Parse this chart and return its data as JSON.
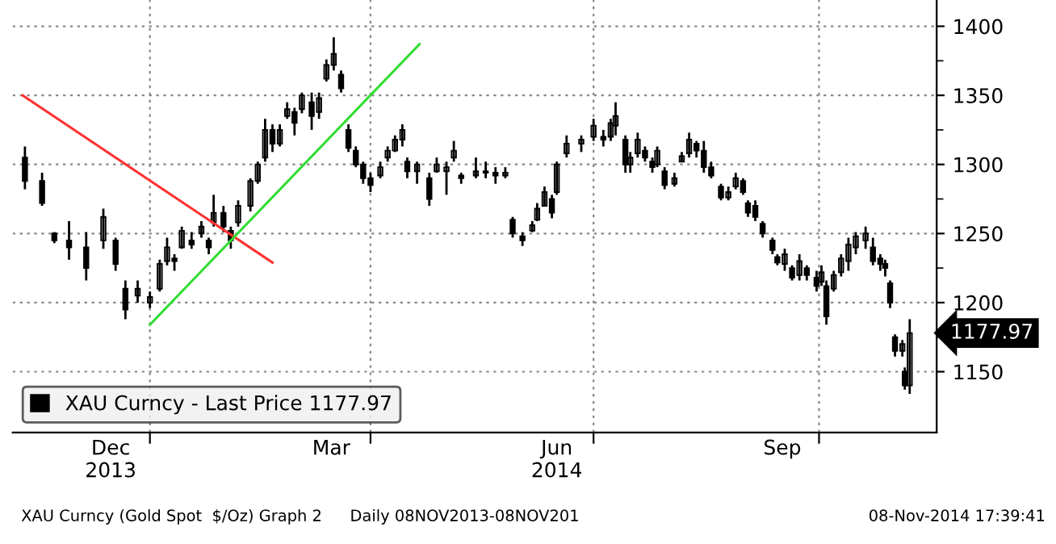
{
  "chart_data": {
    "type": "candlestick",
    "series": [
      {
        "name": "XAU Curncy - Last Price 1177.97",
        "color": "#000000",
        "x": [
          "2013-11-11",
          "2013-11-18",
          "2013-11-23",
          "2013-11-29",
          "2013-12-06",
          "2013-12-13",
          "2013-12-18",
          "2013-12-22",
          "2013-12-27",
          "2014-01-01",
          "2014-01-05",
          "2014-01-08",
          "2014-01-11",
          "2014-01-14",
          "2014-01-18",
          "2014-01-22",
          "2014-01-25",
          "2014-01-27",
          "2014-01-31",
          "2014-02-03",
          "2014-02-06",
          "2014-02-11",
          "2014-02-14",
          "2014-02-17",
          "2014-02-20",
          "2014-02-23",
          "2014-02-26",
          "2014-03-01",
          "2014-03-04",
          "2014-03-08",
          "2014-03-11",
          "2014-03-14",
          "2014-03-17",
          "2014-03-20",
          "2014-03-23",
          "2014-03-26",
          "2014-03-29",
          "2014-04-01",
          "2014-04-05",
          "2014-04-08",
          "2014-04-11",
          "2014-04-14",
          "2014-04-16",
          "2014-04-20",
          "2014-04-25",
          "2014-04-28",
          "2014-05-02",
          "2014-05-05",
          "2014-05-08",
          "2014-05-14",
          "2014-05-18",
          "2014-05-22",
          "2014-05-26",
          "2014-05-29",
          "2014-06-02",
          "2014-06-06",
          "2014-06-08",
          "2014-06-11",
          "2014-06-14",
          "2014-06-16",
          "2014-06-20",
          "2014-06-26",
          "2014-07-01",
          "2014-07-05",
          "2014-07-08",
          "2014-07-10",
          "2014-07-14",
          "2014-07-16",
          "2014-07-19",
          "2014-07-22",
          "2014-07-25",
          "2014-07-27",
          "2014-07-30",
          "2014-08-03",
          "2014-08-06",
          "2014-08-09",
          "2014-08-12",
          "2014-08-15",
          "2014-08-18",
          "2014-08-22",
          "2014-08-25",
          "2014-08-28",
          "2014-08-31",
          "2014-09-02",
          "2014-09-05",
          "2014-09-08",
          "2014-09-12",
          "2014-09-14",
          "2014-09-17",
          "2014-09-20",
          "2014-09-23",
          "2014-09-26",
          "2014-09-30",
          "2014-10-02",
          "2014-10-04",
          "2014-10-07",
          "2014-10-10",
          "2014-10-13",
          "2014-10-16",
          "2014-10-20",
          "2014-10-23",
          "2014-10-26",
          "2014-10-28",
          "2014-10-30",
          "2014-11-01",
          "2014-11-04",
          "2014-11-05",
          "2014-11-07"
        ],
        "ohlc": [
          [
            1305,
            1313,
            1282,
            1288
          ],
          [
            1288,
            1294,
            1270,
            1272
          ],
          [
            1250,
            1251,
            1243,
            1245
          ],
          [
            1245,
            1259,
            1231,
            1240
          ],
          [
            1240,
            1251,
            1216,
            1225
          ],
          [
            1245,
            1268,
            1239,
            1262
          ],
          [
            1245,
            1247,
            1223,
            1228
          ],
          [
            1210,
            1216,
            1188,
            1195
          ],
          [
            1205,
            1216,
            1200,
            1210
          ],
          [
            1200,
            1208,
            1196,
            1204
          ],
          [
            1210,
            1231,
            1208,
            1228
          ],
          [
            1230,
            1247,
            1227,
            1240
          ],
          [
            1232,
            1235,
            1223,
            1230
          ],
          [
            1240,
            1255,
            1239,
            1252
          ],
          [
            1245,
            1251,
            1239,
            1242
          ],
          [
            1250,
            1259,
            1247,
            1255
          ],
          [
            1245,
            1247,
            1235,
            1240
          ],
          [
            1258,
            1278,
            1255,
            1265
          ],
          [
            1265,
            1270,
            1251,
            1255
          ],
          [
            1252,
            1255,
            1239,
            1245
          ],
          [
            1258,
            1274,
            1255,
            1270
          ],
          [
            1270,
            1290,
            1266,
            1288
          ],
          [
            1288,
            1302,
            1286,
            1300
          ],
          [
            1305,
            1333,
            1302,
            1325
          ],
          [
            1325,
            1329,
            1309,
            1315
          ],
          [
            1315,
            1329,
            1313,
            1325
          ],
          [
            1335,
            1345,
            1333,
            1340
          ],
          [
            1338,
            1341,
            1321,
            1330
          ],
          [
            1340,
            1352,
            1337,
            1350
          ],
          [
            1345,
            1352,
            1325,
            1335
          ],
          [
            1338,
            1352,
            1333,
            1348
          ],
          [
            1362,
            1376,
            1360,
            1372
          ],
          [
            1372,
            1392,
            1368,
            1380
          ],
          [
            1365,
            1368,
            1352,
            1355
          ],
          [
            1325,
            1329,
            1309,
            1312
          ],
          [
            1310,
            1313,
            1298,
            1300
          ],
          [
            1300,
            1302,
            1286,
            1290
          ],
          [
            1290,
            1294,
            1280,
            1285
          ],
          [
            1292,
            1302,
            1290,
            1298
          ],
          [
            1305,
            1313,
            1302,
            1310
          ],
          [
            1310,
            1321,
            1309,
            1318
          ],
          [
            1318,
            1329,
            1313,
            1325
          ],
          [
            1302,
            1305,
            1290,
            1295
          ],
          [
            1295,
            1302,
            1286,
            1300
          ],
          [
            1290,
            1294,
            1270,
            1275
          ],
          [
            1295,
            1305,
            1294,
            1300
          ],
          [
            1295,
            1302,
            1278,
            1298
          ],
          [
            1305,
            1317,
            1302,
            1310
          ],
          [
            1292,
            1294,
            1286,
            1290
          ],
          [
            1292,
            1305,
            1290,
            1295
          ],
          [
            1295,
            1302,
            1290,
            1294
          ],
          [
            1294,
            1298,
            1286,
            1292
          ],
          [
            1292,
            1298,
            1290,
            1294
          ],
          [
            1260,
            1262,
            1247,
            1250
          ],
          [
            1248,
            1251,
            1241,
            1245
          ],
          [
            1252,
            1259,
            1251,
            1256
          ],
          [
            1260,
            1272,
            1259,
            1268
          ],
          [
            1270,
            1284,
            1270,
            1280
          ],
          [
            1275,
            1278,
            1261,
            1265
          ],
          [
            1280,
            1302,
            1278,
            1300
          ],
          [
            1308,
            1321,
            1305,
            1315
          ],
          [
            1315,
            1321,
            1309,
            1318
          ],
          [
            1320,
            1333,
            1317,
            1328
          ],
          [
            1320,
            1325,
            1313,
            1318
          ],
          [
            1320,
            1333,
            1317,
            1330
          ],
          [
            1328,
            1345,
            1321,
            1335
          ],
          [
            1318,
            1321,
            1294,
            1300
          ],
          [
            1300,
            1309,
            1294,
            1305
          ],
          [
            1308,
            1323,
            1305,
            1318
          ],
          [
            1310,
            1313,
            1302,
            1305
          ],
          [
            1302,
            1305,
            1294,
            1298
          ],
          [
            1300,
            1313,
            1298,
            1310
          ],
          [
            1295,
            1298,
            1282,
            1285
          ],
          [
            1286,
            1294,
            1284,
            1290
          ],
          [
            1302,
            1309,
            1302,
            1306
          ],
          [
            1308,
            1323,
            1305,
            1318
          ],
          [
            1315,
            1317,
            1305,
            1310
          ],
          [
            1310,
            1317,
            1294,
            1298
          ],
          [
            1298,
            1302,
            1290,
            1292
          ],
          [
            1284,
            1286,
            1274,
            1276
          ],
          [
            1276,
            1284,
            1274,
            1280
          ],
          [
            1284,
            1294,
            1282,
            1290
          ],
          [
            1288,
            1290,
            1278,
            1280
          ],
          [
            1272,
            1274,
            1262,
            1265
          ],
          [
            1270,
            1274,
            1259,
            1262
          ],
          [
            1257,
            1259,
            1247,
            1250
          ],
          [
            1245,
            1247,
            1235,
            1238
          ],
          [
            1233,
            1235,
            1227,
            1229
          ],
          [
            1228,
            1239,
            1223,
            1235
          ],
          [
            1225,
            1227,
            1216,
            1218
          ],
          [
            1220,
            1235,
            1216,
            1230
          ],
          [
            1225,
            1227,
            1216,
            1220
          ],
          [
            1218,
            1223,
            1208,
            1212
          ],
          [
            1215,
            1227,
            1212,
            1222
          ],
          [
            1212,
            1216,
            1184,
            1190
          ],
          [
            1210,
            1223,
            1208,
            1220
          ],
          [
            1222,
            1235,
            1219,
            1232
          ],
          [
            1230,
            1247,
            1223,
            1242
          ],
          [
            1240,
            1251,
            1235,
            1248
          ],
          [
            1245,
            1255,
            1239,
            1250
          ],
          [
            1240,
            1247,
            1227,
            1230
          ],
          [
            1232,
            1235,
            1223,
            1228
          ],
          [
            1228,
            1231,
            1219,
            1225
          ],
          [
            1214,
            1216,
            1196,
            1200
          ],
          [
            1175,
            1177,
            1161,
            1165
          ],
          [
            1165,
            1173,
            1161,
            1170
          ],
          [
            1150,
            1153,
            1137,
            1140
          ],
          [
            1140,
            1188,
            1134,
            1177.97
          ]
        ]
      },
      {
        "type": "line",
        "color": "#ff3333",
        "x": [
          "2013-11-10",
          "2014-02-20"
        ],
        "values": [
          1350,
          1229
        ]
      },
      {
        "type": "line",
        "color": "#33dd33",
        "x": [
          "2014-01-01",
          "2014-04-21"
        ],
        "values": [
          1184,
          1387
        ]
      }
    ],
    "xlim": [
      "2013-11-06",
      "2014-11-18"
    ],
    "ylim": [
      1106,
      1419
    ],
    "xticks": [
      {
        "value": "2013-12-16",
        "label": "Dec\n2013"
      },
      {
        "value": "2014-01-01",
        "label": null
      },
      {
        "value": "2014-03-16",
        "label": "Mar"
      },
      {
        "value": "2014-04-01",
        "label": null
      },
      {
        "value": "2014-06-16",
        "label": "Jun\n2014"
      },
      {
        "value": "2014-07-01",
        "label": null
      },
      {
        "value": "2014-09-16",
        "label": "Sep"
      },
      {
        "value": "2014-10-01",
        "label": null
      }
    ],
    "yticks": [
      1150,
      {
        "value": 1175,
        "label": null
      },
      1200,
      {
        "value": 1225,
        "label": null
      },
      1250,
      {
        "value": 1275,
        "label": null
      },
      1300,
      {
        "value": 1325,
        "label": null
      },
      1350,
      {
        "value": 1375,
        "label": null
      },
      1400
    ],
    "grid": true,
    "legend": "bottom left",
    "annotations": [
      "1177.97",
      "XAU Curncy (Gold Spot  $/Oz) Graph 2",
      "Daily 08NOV2013-08NOV201",
      "08-Nov-2014 17:39:41"
    ]
  }
}
